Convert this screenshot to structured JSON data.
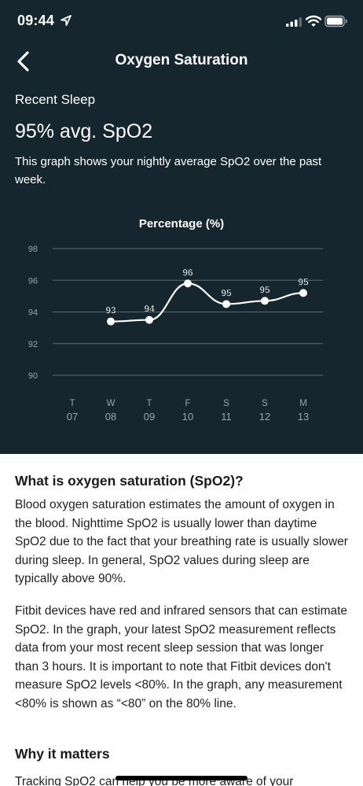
{
  "status_bar": {
    "time": "09:44"
  },
  "nav": {
    "title": "Oxygen Saturation",
    "back_icon": "chevron-left-icon"
  },
  "summary": {
    "section_label": "Recent Sleep",
    "headline": "95% avg. SpO2",
    "description": "This graph shows your nightly average SpO2 over the past week."
  },
  "chart_data": {
    "type": "line",
    "title": "Percentage (%)",
    "ylim": [
      90,
      98
    ],
    "yticks": [
      98,
      96,
      94,
      92,
      90
    ],
    "categories": [
      {
        "day": "T",
        "date": "07"
      },
      {
        "day": "W",
        "date": "08"
      },
      {
        "day": "T",
        "date": "09"
      },
      {
        "day": "F",
        "date": "10"
      },
      {
        "day": "S",
        "date": "11"
      },
      {
        "day": "S",
        "date": "12"
      },
      {
        "day": "M",
        "date": "13"
      }
    ],
    "values": [
      null,
      93.4,
      93.5,
      95.8,
      94.5,
      94.7,
      95.2
    ],
    "labels": [
      null,
      "93",
      "94",
      "96",
      "95",
      "95",
      "95"
    ],
    "grid": true,
    "colors": {
      "line": "#ffffff",
      "grid": "#5a6a72",
      "ticks": "#9aa4aa"
    }
  },
  "info": {
    "heading1": "What is oxygen saturation (SpO2)?",
    "para1": "Blood oxygen saturation estimates the amount of oxygen in the blood. Nighttime SpO2 is usually lower than daytime SpO2 due to the fact that your breathing rate is usually slower during sleep. In general, SpO2 values during sleep are typically above 90%.",
    "para2": "Fitbit devices have red and infrared sensors that can estimate SpO2. In the graph, your latest SpO2 measurement reflects data from your most recent sleep session that was longer than 3 hours. It is important to note that Fitbit devices don't measure SpO2 levels <80%. In the graph, any measurement <80% is shown as “<80” on the 80% line.",
    "heading2": "Why it matters",
    "para3": "Tracking SpO2 can help you be more aware of your"
  },
  "theme": {
    "dark_bg": "#16262e",
    "light_bg": "#ffffff"
  }
}
